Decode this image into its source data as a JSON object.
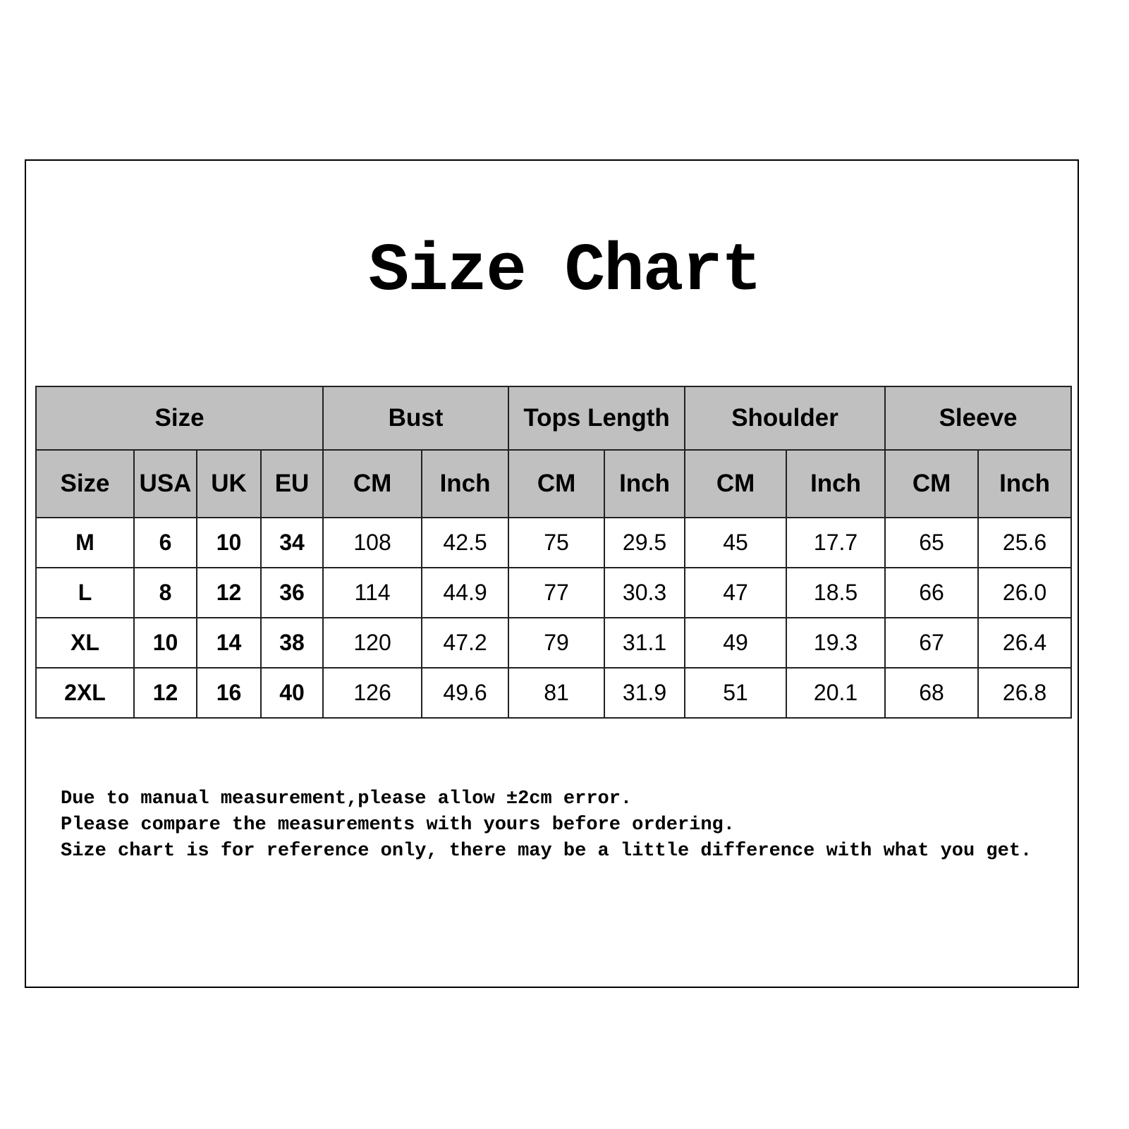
{
  "title": "Size Chart",
  "table": {
    "group_headers": [
      "Size",
      "Bust",
      "Tops Length",
      "Shoulder",
      "Sleeve"
    ],
    "sub_headers": [
      "Size",
      "USA",
      "UK",
      "EU",
      "CM",
      "Inch",
      "CM",
      "Inch",
      "CM",
      "Inch",
      "CM",
      "Inch"
    ],
    "rows": [
      [
        "M",
        "6",
        "10",
        "34",
        "108",
        "42.5",
        "75",
        "29.5",
        "45",
        "17.7",
        "65",
        "25.6"
      ],
      [
        "L",
        "8",
        "12",
        "36",
        "114",
        "44.9",
        "77",
        "30.3",
        "47",
        "18.5",
        "66",
        "26.0"
      ],
      [
        "XL",
        "10",
        "14",
        "38",
        "120",
        "47.2",
        "79",
        "31.1",
        "49",
        "19.3",
        "67",
        "26.4"
      ],
      [
        "2XL",
        "12",
        "16",
        "40",
        "126",
        "49.6",
        "81",
        "31.9",
        "51",
        "20.1",
        "68",
        "26.8"
      ]
    ],
    "header_bg": "#c0c0c0"
  },
  "notes": [
    "Due to manual measurement,please allow ±2cm error.",
    "Please compare the measurements with yours before ordering.",
    "Size chart is for reference only, there may be a little difference with what you get."
  ]
}
